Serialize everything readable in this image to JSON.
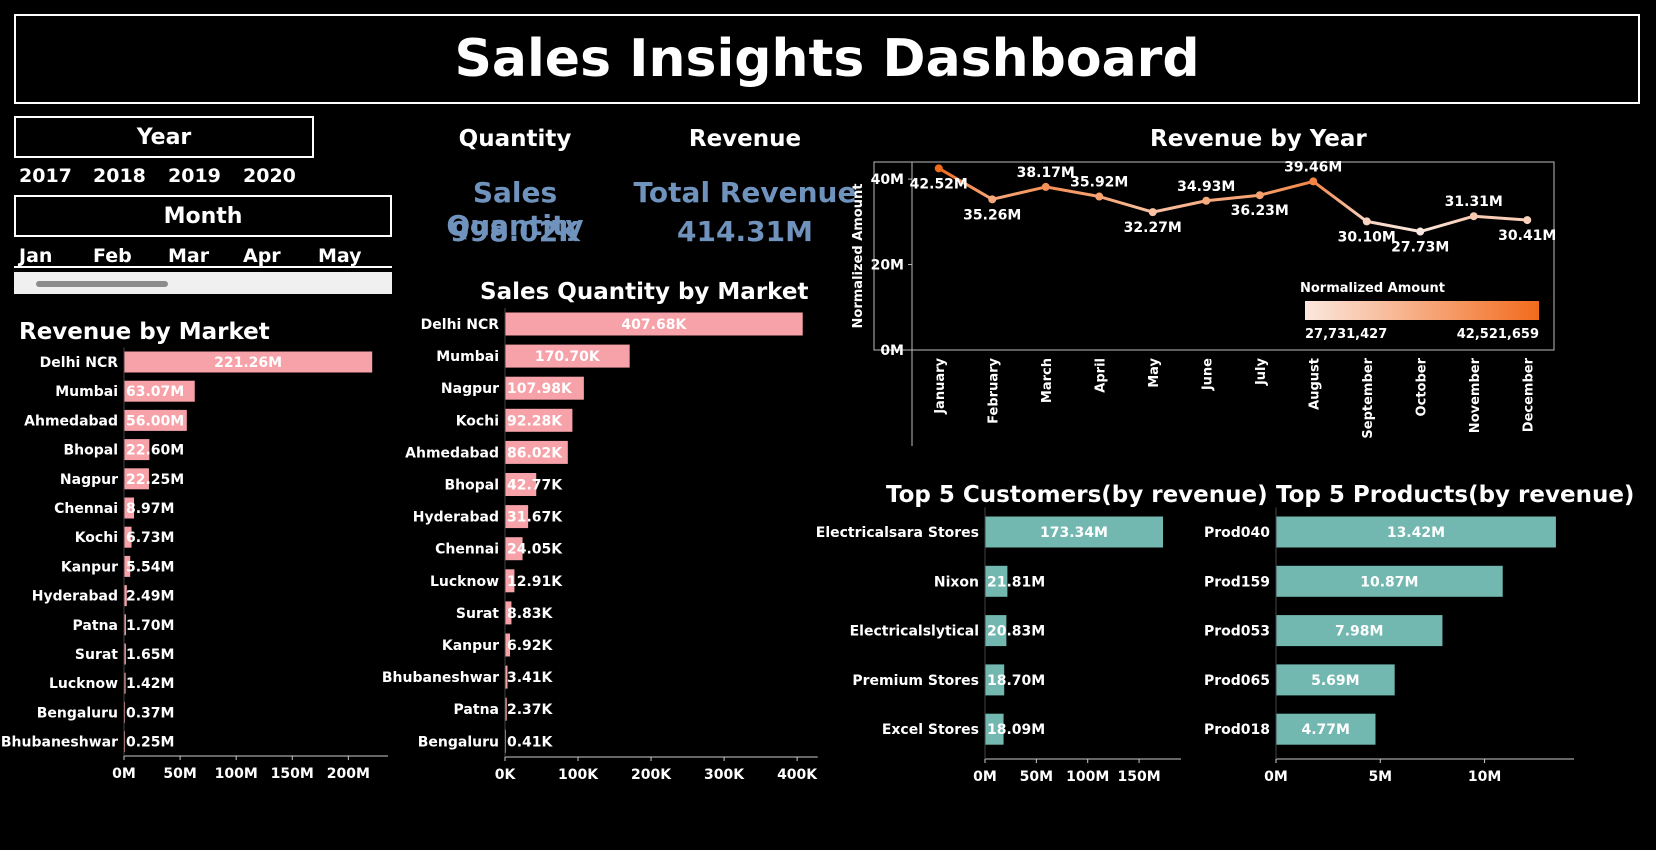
{
  "title": "Sales Insights Dashboard",
  "filters": {
    "year_label": "Year",
    "years": [
      "2017",
      "2018",
      "2019",
      "2020"
    ],
    "month_label": "Month",
    "months": [
      "Jan",
      "Feb",
      "Mar",
      "Apr",
      "May"
    ]
  },
  "kpis": {
    "quantity_header": "Quantity",
    "revenue_header": "Revenue",
    "quantity_label": "Sales Quantity",
    "quantity_value": "998.02K",
    "revenue_label": "Total Revenue",
    "revenue_value": "414.31M"
  },
  "colors": {
    "market_bar": "#f7a1a8",
    "top5_bar": "#72b8b0",
    "line_low": "#fbe8df",
    "line_high": "#f26b1d",
    "kpi_text": "#6f93bd"
  },
  "chart_data": [
    {
      "id": "revenue_by_market",
      "type": "bar",
      "orientation": "horizontal",
      "title": "Revenue by Market",
      "categories": [
        "Delhi NCR",
        "Mumbai",
        "Ahmedabad",
        "Bhopal",
        "Nagpur",
        "Chennai",
        "Kochi",
        "Kanpur",
        "Hyderabad",
        "Patna",
        "Surat",
        "Lucknow",
        "Bengaluru",
        "Bhubaneshwar"
      ],
      "values": [
        221.26,
        63.07,
        56.0,
        22.6,
        22.25,
        8.97,
        6.73,
        5.54,
        2.49,
        1.7,
        1.65,
        1.42,
        0.37,
        0.25
      ],
      "value_labels": [
        "221.26M",
        "63.07M",
        "56.00M",
        "22.60M",
        "22.25M",
        "8.97M",
        "6.73M",
        "5.54M",
        "2.49M",
        "1.70M",
        "1.65M",
        "1.42M",
        "0.37M",
        "0.25M"
      ],
      "xlim": [
        0,
        230
      ],
      "xticks": [
        0,
        50,
        100,
        150,
        200
      ],
      "xtick_labels": [
        "0M",
        "50M",
        "100M",
        "150M",
        "200M"
      ]
    },
    {
      "id": "sales_quantity_by_market",
      "type": "bar",
      "orientation": "horizontal",
      "title": "Sales Quantity by Market",
      "categories": [
        "Delhi NCR",
        "Mumbai",
        "Nagpur",
        "Kochi",
        "Ahmedabad",
        "Bhopal",
        "Hyderabad",
        "Chennai",
        "Lucknow",
        "Surat",
        "Kanpur",
        "Bhubaneshwar",
        "Patna",
        "Bengaluru"
      ],
      "values": [
        407.68,
        170.7,
        107.98,
        92.28,
        86.02,
        42.77,
        31.67,
        24.05,
        12.91,
        8.83,
        6.92,
        3.41,
        2.37,
        0.41
      ],
      "value_labels": [
        "407.68K",
        "170.70K",
        "107.98K",
        "92.28K",
        "86.02K",
        "42.77K",
        "31.67K",
        "24.05K",
        "12.91K",
        "8.83K",
        "6.92K",
        "3.41K",
        "2.37K",
        "0.41K"
      ],
      "xlim": [
        0,
        420
      ],
      "xticks": [
        0,
        100,
        200,
        300,
        400
      ],
      "xtick_labels": [
        "0K",
        "100K",
        "200K",
        "300K",
        "400K"
      ]
    },
    {
      "id": "revenue_by_year",
      "type": "line",
      "title": "Revenue by Year",
      "ylabel": "Normalized Amount",
      "x": [
        "January",
        "February",
        "March",
        "April",
        "May",
        "June",
        "July",
        "August",
        "September",
        "October",
        "November",
        "December"
      ],
      "y": [
        42.52,
        35.26,
        38.17,
        35.92,
        32.27,
        34.93,
        36.23,
        39.46,
        30.1,
        27.73,
        31.31,
        30.41
      ],
      "value_labels": [
        "42.52M",
        "35.26M",
        "38.17M",
        "35.92M",
        "32.27M",
        "34.93M",
        "36.23M",
        "39.46M",
        "30.10M",
        "27.73M",
        "31.31M",
        "30.41M"
      ],
      "label_position": [
        "right",
        "below",
        "above",
        "above",
        "below",
        "above",
        "below",
        "above",
        "below",
        "below",
        "above",
        "below"
      ],
      "ylim": [
        0,
        44
      ],
      "yticks": [
        0,
        20,
        40
      ],
      "ytick_labels": [
        "0M",
        "20M",
        "40M"
      ],
      "legend": {
        "title": "Normalized Amount",
        "min_label": "27,731,427",
        "max_label": "42,521,659",
        "placement": "bottom-right"
      }
    },
    {
      "id": "top5_customers",
      "type": "bar",
      "orientation": "horizontal",
      "title": "Top 5 Customers(by revenue)",
      "categories": [
        "Electricalsara Stores",
        "Nixon",
        "Electricalslytical",
        "Premium Stores",
        "Excel Stores"
      ],
      "values": [
        173.34,
        21.81,
        20.83,
        18.7,
        18.09
      ],
      "value_labels": [
        "173.34M",
        "21.81M",
        "20.83M",
        "18.70M",
        "18.09M"
      ],
      "xlim": [
        0,
        185
      ],
      "xticks": [
        0,
        50,
        100,
        150
      ],
      "xtick_labels": [
        "0M",
        "50M",
        "100M",
        "150M"
      ]
    },
    {
      "id": "top5_products",
      "type": "bar",
      "orientation": "horizontal",
      "title": "Top 5 Products(by revenue)",
      "categories": [
        "Prod040",
        "Prod159",
        "Prod053",
        "Prod065",
        "Prod018"
      ],
      "values": [
        13.42,
        10.87,
        7.98,
        5.69,
        4.77
      ],
      "value_labels": [
        "13.42M",
        "10.87M",
        "7.98M",
        "5.69M",
        "4.77M"
      ],
      "xlim": [
        0,
        14
      ],
      "xticks": [
        0,
        5,
        10
      ],
      "xtick_labels": [
        "0M",
        "5M",
        "10M"
      ]
    }
  ]
}
